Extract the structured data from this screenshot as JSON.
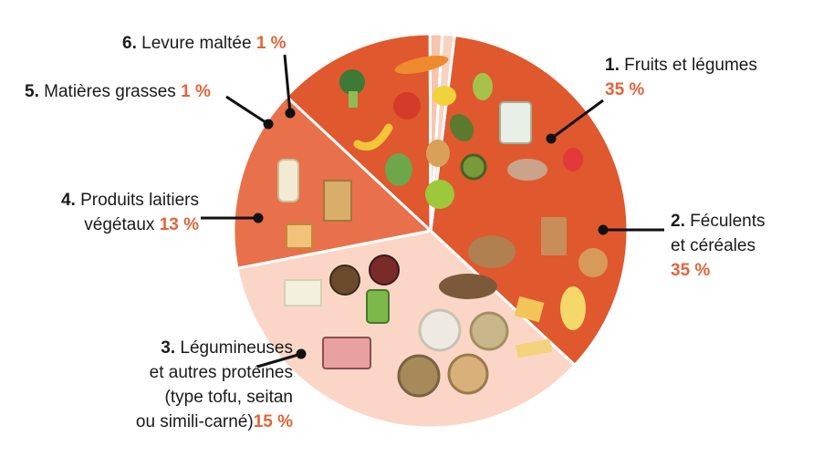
{
  "chart_data": {
    "type": "pie",
    "title": "",
    "slices": [
      {
        "id": "1",
        "number": "1.",
        "label": "Fruits et légumes",
        "value": 35,
        "value_label": "35 %",
        "color": "#e0582e"
      },
      {
        "id": "2",
        "number": "2.",
        "label": "Féculents et céréales",
        "value": 35,
        "value_label": "35 %",
        "color": "#fbd6c6"
      },
      {
        "id": "3",
        "number": "3.",
        "label": "Légumineuses et autres protéines (type tofu, seitan ou simili-carné)",
        "value": 15,
        "value_label": "15 %",
        "color": "#e8704a"
      },
      {
        "id": "4",
        "number": "4.",
        "label": "Produits laitiers végétaux",
        "value": 13,
        "value_label": "13 %",
        "color": "#e0582e"
      },
      {
        "id": "5",
        "number": "5.",
        "label": "Matières grasses",
        "value": 1,
        "value_label": "1 %",
        "color": "#f7c4ad"
      },
      {
        "id": "6",
        "number": "6.",
        "label": "Levure maltée",
        "value": 1,
        "value_label": "1 %",
        "color": "#f9d3c2"
      }
    ]
  },
  "labels": {
    "s1": {
      "number": "1.",
      "line1": "Fruits et légumes",
      "pct": "35 %"
    },
    "s2": {
      "number": "2.",
      "line1": "Féculents",
      "line2": "et céréales",
      "pct": "35 %"
    },
    "s3": {
      "number": "3.",
      "line1": "Légumineuses",
      "line2": "et autres protéines",
      "line3": "(type tofu, seitan",
      "line4": "ou simili-carné)",
      "pct": "15 %"
    },
    "s4": {
      "number": "4.",
      "line1": "Produits laitiers",
      "line2": "végétaux",
      "pct": "13 %"
    },
    "s5": {
      "number": "5.",
      "line1": "Matières grasses",
      "pct": "1 %"
    },
    "s6": {
      "number": "6.",
      "line1": "Levure maltée",
      "pct": "1 %"
    }
  },
  "colors": {
    "accent": "#e2643a",
    "leader": "#111111",
    "divider": "#ffffff"
  },
  "food_icons": [
    "broccoli-icon",
    "carrot-icon",
    "tomato-icon",
    "lemon-icon",
    "pear-icon",
    "banana-icon",
    "onion-icon",
    "avocado-icon",
    "kiwi-icon",
    "mushroom-icon",
    "strawberry-icon",
    "apple-icon",
    "cabbage-icon",
    "canned-vegetables-icon",
    "bread-icon",
    "crispbread-icon",
    "bun-icon",
    "pasta-icon",
    "rice-bowl-icon",
    "grain-bowl-icon",
    "fries-icon",
    "tofu-icon",
    "legume-bowl-icon",
    "jar-icon",
    "seitan-package-icon",
    "plant-milk-bottle-icon",
    "plant-milk-carton-icon",
    "yogurt-icon"
  ]
}
